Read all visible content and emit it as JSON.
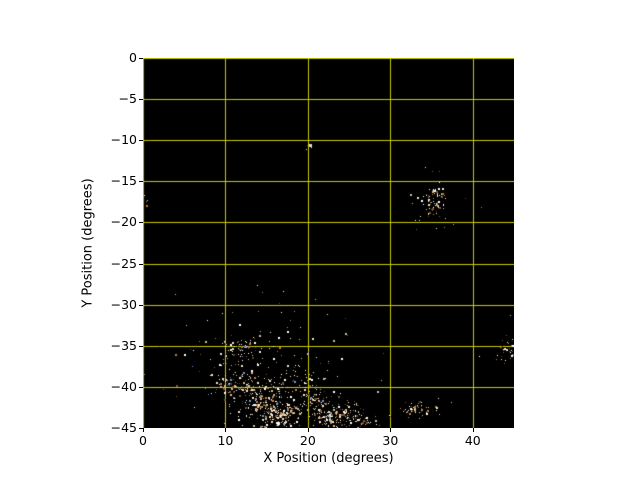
{
  "figure": {
    "background": "#ffffff",
    "plot_background": "#000000",
    "grid_color": "#c9c900",
    "tick_color": "#000000",
    "x_tick_values": [
      0,
      10,
      20,
      30,
      40
    ],
    "x_tick_labels": [
      "0",
      "10",
      "20",
      "30",
      "40"
    ],
    "y_tick_values": [
      0,
      -5,
      -10,
      -15,
      -20,
      -25,
      -30,
      -35,
      -40,
      -45
    ],
    "y_tick_labels": [
      "0",
      "−5",
      "−10",
      "−15",
      "−20",
      "−25",
      "−30",
      "−35",
      "−40",
      "−45"
    ]
  },
  "chart_data": {
    "type": "scatter",
    "title": "",
    "xlabel": "X Position (degrees)",
    "ylabel": "Y Position (degrees)",
    "xlim": [
      0,
      45
    ],
    "ylim": [
      -45,
      0
    ],
    "grid": true,
    "grid_color": "#c9c900",
    "background": "#000000",
    "description": "Star-field position map: dense stellar association along the bottom (x 8-28, y -33 to -45), compact cluster near (35,-17), clump at (20,-10.5), cluster at (32.6,-42.8), cluster at right edge (44.3,-35.4), few stars at left edge near (0.4,-17.8).",
    "point_palette": [
      {
        "color": "#ffffff",
        "weight": 0.18
      },
      {
        "color": "#f2e3c5",
        "weight": 0.22
      },
      {
        "color": "#d9b98a",
        "weight": 0.2
      },
      {
        "color": "#b08050",
        "weight": 0.14
      },
      {
        "color": "#7d5433",
        "weight": 0.12
      },
      {
        "color": "#574033",
        "weight": 0.08
      },
      {
        "color": "#6f9bd8",
        "weight": 0.05
      },
      {
        "color": "#c97b3f",
        "weight": 0.01
      }
    ],
    "clusters": [
      {
        "name": "clump-20-10",
        "x": 20.15,
        "y": -10.75,
        "sx": 0.3,
        "sy": 0.3,
        "n": 4
      },
      {
        "name": "left-edge-stars",
        "x": 0.45,
        "y": -17.6,
        "sx": 0.3,
        "sy": 0.6,
        "n": 3
      },
      {
        "name": "cluster-35-17-core",
        "x": 35.3,
        "y": -17.2,
        "sx": 0.75,
        "sy": 0.85,
        "n": 70
      },
      {
        "name": "cluster-35-17-halo",
        "x": 35.3,
        "y": -17.4,
        "sx": 1.6,
        "sy": 1.7,
        "n": 18
      },
      {
        "name": "association-halo",
        "x": 13.5,
        "y": -38.0,
        "sx": 4.0,
        "sy": 3.0,
        "n": 130
      },
      {
        "name": "clump-11-35",
        "x": 11.4,
        "y": -35.2,
        "sx": 1.1,
        "sy": 0.45,
        "n": 55
      },
      {
        "name": "clump-11-39.6",
        "x": 11.0,
        "y": -39.6,
        "sx": 1.3,
        "sy": 0.8,
        "n": 70
      },
      {
        "name": "clump-14.3-41.6",
        "x": 14.3,
        "y": -41.6,
        "sx": 1.3,
        "sy": 1.1,
        "n": 140
      },
      {
        "name": "clump-16.6-43.4",
        "x": 16.6,
        "y": -43.4,
        "sx": 1.4,
        "sy": 0.9,
        "n": 170
      },
      {
        "name": "bridge-18.3-39.3",
        "x": 18.3,
        "y": -39.3,
        "sx": 1.6,
        "sy": 1.1,
        "n": 45
      },
      {
        "name": "clump-20.8-41.4",
        "x": 20.8,
        "y": -41.4,
        "sx": 0.8,
        "sy": 0.55,
        "n": 60
      },
      {
        "name": "clump-22.6-43.6",
        "x": 22.6,
        "y": -43.6,
        "sx": 1.3,
        "sy": 0.8,
        "n": 110
      },
      {
        "name": "clump-24.9-43.2",
        "x": 24.9,
        "y": -43.2,
        "sx": 1.0,
        "sy": 0.8,
        "n": 75
      },
      {
        "name": "tail-27-44",
        "x": 27.0,
        "y": -44.0,
        "sx": 0.9,
        "sy": 0.6,
        "n": 28
      },
      {
        "name": "cluster-32.6-42.8",
        "x": 32.6,
        "y": -42.8,
        "sx": 1.0,
        "sy": 0.5,
        "n": 42
      },
      {
        "name": "tail-35-42.4",
        "x": 35.0,
        "y": -42.4,
        "sx": 1.2,
        "sy": 0.6,
        "n": 14
      },
      {
        "name": "cluster-44-35.4",
        "x": 44.3,
        "y": -35.4,
        "sx": 0.9,
        "sy": 0.8,
        "n": 40
      },
      {
        "name": "sparse-field",
        "x": 14.0,
        "y": -38.0,
        "sx": 8.0,
        "sy": 4.5,
        "n": 70
      }
    ],
    "notable_points": [
      {
        "x": 20.15,
        "y": -10.5,
        "color": "#d8d8d8",
        "size": 3
      },
      {
        "x": 0.4,
        "y": -17.9,
        "color": "#c97b3f",
        "size": 2
      },
      {
        "x": 35.0,
        "y": -13.7,
        "color": "#7d5433",
        "size": 1
      },
      {
        "x": 41.0,
        "y": -18.1,
        "color": "#b08050",
        "size": 1
      },
      {
        "x": 37.6,
        "y": -20.2,
        "color": "#d9b98a",
        "size": 1
      },
      {
        "x": 33.1,
        "y": -20.8,
        "color": "#7d5433",
        "size": 1
      },
      {
        "x": 11.7,
        "y": -32.3,
        "color": "#ffffff",
        "size": 2
      },
      {
        "x": 5.2,
        "y": -32.5,
        "color": "#d9b98a",
        "size": 1
      },
      {
        "x": 2.0,
        "y": -35.0,
        "color": "#b08050",
        "size": 1
      },
      {
        "x": 44.5,
        "y": -31.2,
        "color": "#d9b98a",
        "size": 1
      }
    ]
  }
}
